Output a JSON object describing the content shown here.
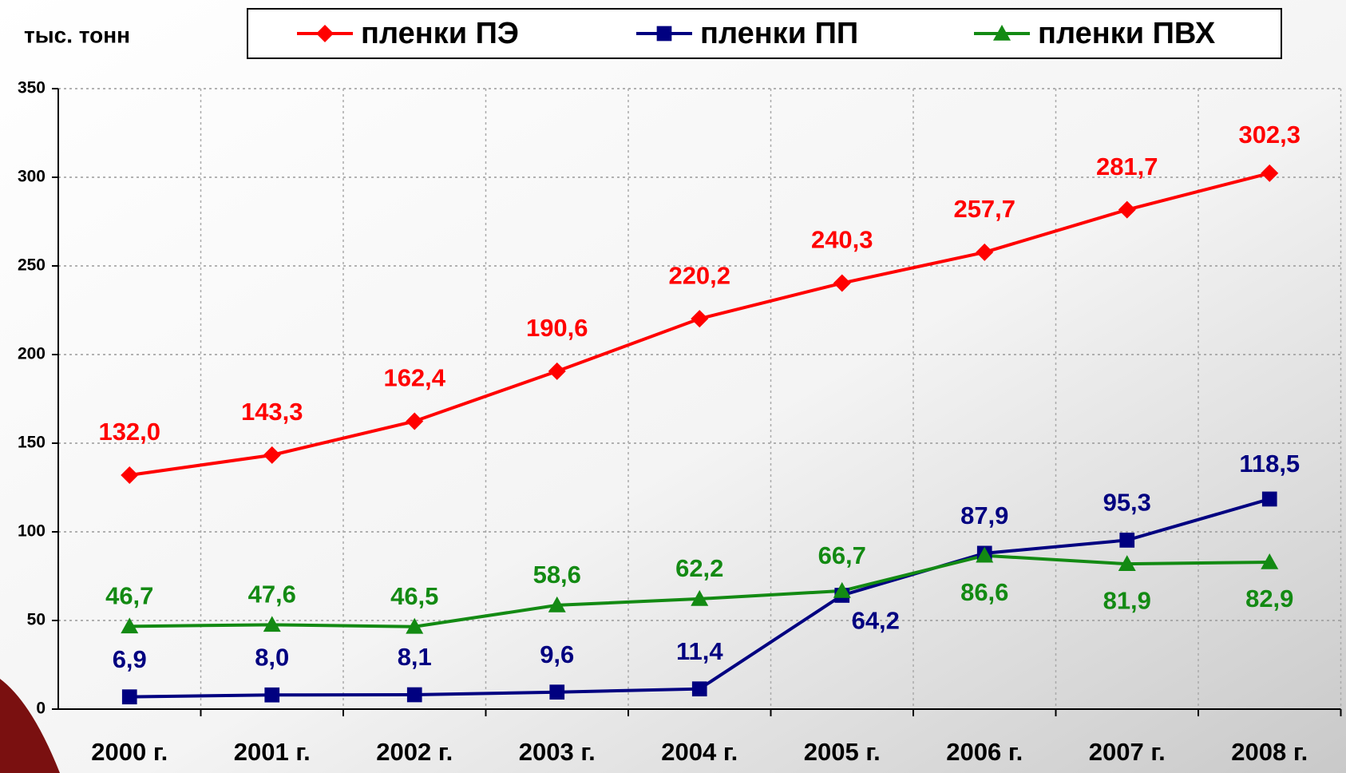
{
  "chart_data": {
    "type": "line",
    "ylabel": "тыс. тонн",
    "categories": [
      "2000 г.",
      "2001 г.",
      "2002 г.",
      "2003 г.",
      "2004 г.",
      "2005 г.",
      "2006 г.",
      "2007 г.",
      "2008 г."
    ],
    "series": [
      {
        "name": "пленки ПЭ",
        "color": "#ff0000",
        "marker": "diamond",
        "values": [
          132.0,
          143.3,
          162.4,
          190.6,
          220.2,
          240.3,
          257.7,
          281.7,
          302.3
        ],
        "value_labels": [
          "132,0",
          "143,3",
          "162,4",
          "190,6",
          "220,2",
          "240,3",
          "257,7",
          "281,7",
          "302,3"
        ]
      },
      {
        "name": "пленки ПП",
        "color": "#000080",
        "marker": "square",
        "values": [
          6.9,
          8.0,
          8.1,
          9.6,
          11.4,
          64.2,
          87.9,
          95.3,
          118.5
        ],
        "value_labels": [
          "6,9",
          "8,0",
          "8,1",
          "9,6",
          "11,4",
          "64,2",
          "87,9",
          "95,3",
          "118,5"
        ]
      },
      {
        "name": "пленки ПВХ",
        "color": "#138a13",
        "marker": "triangle",
        "values": [
          46.7,
          47.6,
          46.5,
          58.6,
          62.2,
          66.7,
          86.6,
          81.9,
          82.9
        ],
        "value_labels": [
          "46,7",
          "47,6",
          "46,5",
          "58,6",
          "62,2",
          "66,7",
          "86,6",
          "81,9",
          "82,9"
        ]
      }
    ],
    "ylim": [
      0,
      350
    ],
    "yticks": [
      0,
      50,
      100,
      150,
      200,
      250,
      300,
      350
    ],
    "grid": true,
    "legend": "top"
  }
}
